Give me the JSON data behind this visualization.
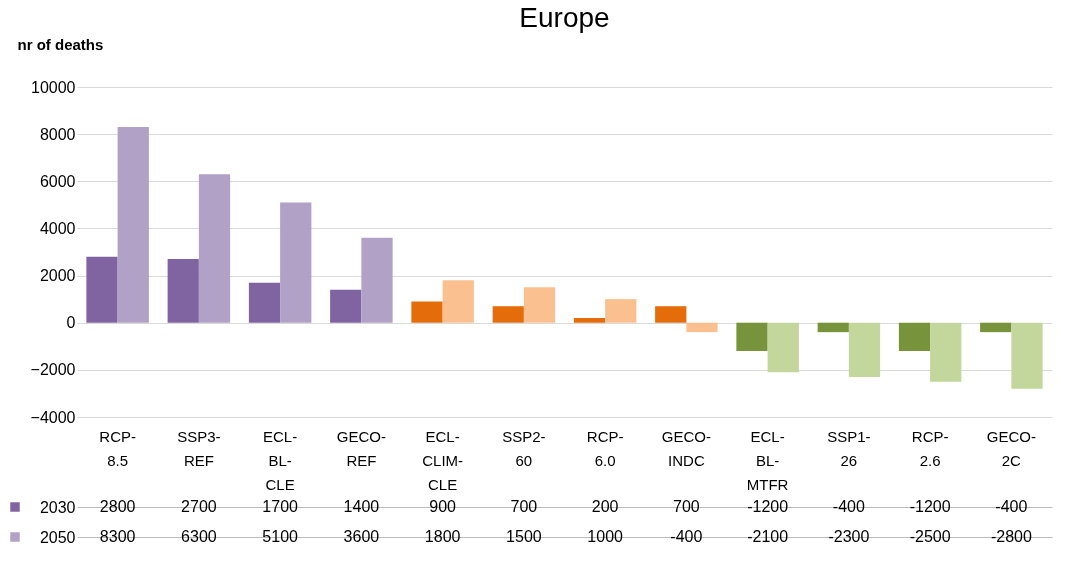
{
  "chart_data": {
    "type": "bar",
    "title": "Europe",
    "ylabel": "nr of deaths",
    "categories": [
      "RCP-8.5",
      "SSP3-REF",
      "ECL-BL-CLE",
      "GECO-REF",
      "ECL-CLIM-CLE",
      "SSP2-60",
      "RCP-6.0",
      "GECO-INDC",
      "ECL-BL-MTFR",
      "SSP1-26",
      "RCP-2.6",
      "GECO-2C"
    ],
    "series": [
      {
        "name": "2030",
        "colors": [
          "#8064a2",
          "#8064a2",
          "#8064a2",
          "#8064a2",
          "#e46c0a",
          "#e46c0a",
          "#e46c0a",
          "#e46c0a",
          "#77933c",
          "#77933c",
          "#77933c",
          "#77933c"
        ],
        "values": [
          2800,
          2700,
          1700,
          1400,
          900,
          700,
          200,
          700,
          -1200,
          -400,
          -1200,
          -400
        ]
      },
      {
        "name": "2050",
        "colors": [
          "#b2a1c7",
          "#b2a1c7",
          "#b2a1c7",
          "#b2a1c7",
          "#fac090",
          "#fac090",
          "#fac090",
          "#fac090",
          "#c3d69b",
          "#c3d69b",
          "#c3d69b",
          "#c3d69b"
        ],
        "values": [
          8300,
          6300,
          5100,
          3600,
          1800,
          1500,
          1000,
          -400,
          -2100,
          -2300,
          -2500,
          -2800
        ]
      }
    ],
    "ylim": [
      -4000,
      10000
    ],
    "yticks": [
      -4000,
      -2000,
      0,
      2000,
      4000,
      6000,
      8000,
      10000
    ],
    "grid": "y",
    "legend": "bottom left",
    "data_labels": true
  }
}
